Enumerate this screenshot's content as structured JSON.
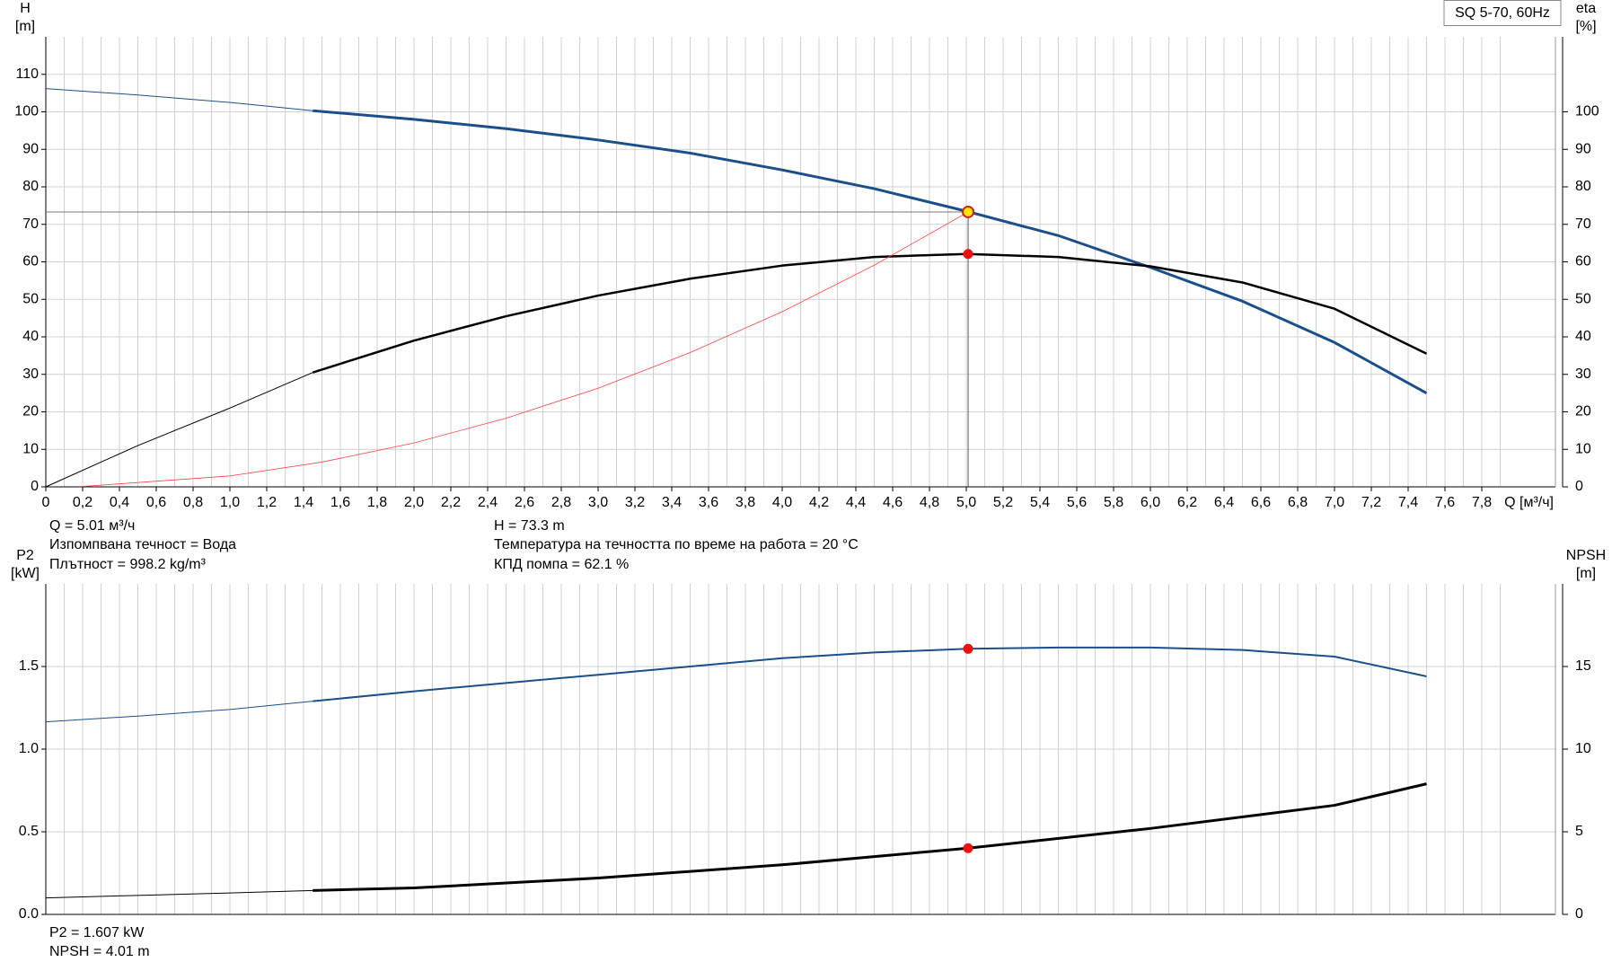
{
  "chart_data": [
    {
      "type": "line",
      "ylabel": "H",
      "yunit": "[m]",
      "y2label": "eta",
      "y2unit": "[%]",
      "legend_text": "SQ 5-70, 60Hz",
      "xlabel": "Q [м³/ч]",
      "xlim": [
        0,
        8.2
      ],
      "ylim": [
        0,
        120
      ],
      "y2lim": [
        0,
        120
      ],
      "xticks": [
        0,
        {
          "value": 0.2,
          "label": "0,2"
        },
        {
          "value": 0.4,
          "label": "0,4"
        },
        {
          "value": 0.6,
          "label": "0,6"
        },
        {
          "value": 0.8,
          "label": "0,8"
        },
        {
          "value": 1.0,
          "label": "1,0"
        },
        {
          "value": 1.2,
          "label": "1,2"
        },
        {
          "value": 1.4,
          "label": "1,4"
        },
        {
          "value": 1.6,
          "label": "1,6"
        },
        {
          "value": 1.8,
          "label": "1,8"
        },
        {
          "value": 2.0,
          "label": "2,0"
        },
        {
          "value": 2.2,
          "label": "2,2"
        },
        {
          "value": 2.4,
          "label": "2,4"
        },
        {
          "value": 2.6,
          "label": "2,6"
        },
        {
          "value": 2.8,
          "label": "2,8"
        },
        {
          "value": 3.0,
          "label": "3,0"
        },
        {
          "value": 3.2,
          "label": "3,2"
        },
        {
          "value": 3.4,
          "label": "3,4"
        },
        {
          "value": 3.6,
          "label": "3,6"
        },
        {
          "value": 3.8,
          "label": "3,8"
        },
        {
          "value": 4.0,
          "label": "4,0"
        },
        {
          "value": 4.2,
          "label": "4,2"
        },
        {
          "value": 4.4,
          "label": "4,4"
        },
        {
          "value": 4.6,
          "label": "4,6"
        },
        {
          "value": 4.8,
          "label": "4,8"
        },
        {
          "value": 5.0,
          "label": "5,0"
        },
        {
          "value": 5.2,
          "label": "5,2"
        },
        {
          "value": 5.4,
          "label": "5,4"
        },
        {
          "value": 5.6,
          "label": "5,6"
        },
        {
          "value": 5.8,
          "label": "5,8"
        },
        {
          "value": 6.0,
          "label": "6,0"
        },
        {
          "value": 6.2,
          "label": "6,2"
        },
        {
          "value": 6.4,
          "label": "6,4"
        },
        {
          "value": 6.6,
          "label": "6,6"
        },
        {
          "value": 6.8,
          "label": "6,8"
        },
        {
          "value": 7.0,
          "label": "7,0"
        },
        {
          "value": 7.2,
          "label": "7,2"
        },
        {
          "value": 7.4,
          "label": "7,4"
        },
        {
          "value": 7.6,
          "label": "7,6"
        },
        {
          "value": 7.8,
          "label": "7,8"
        }
      ],
      "yticks": [
        0,
        10,
        20,
        30,
        40,
        50,
        60,
        70,
        80,
        90,
        100,
        110
      ],
      "y2ticks": [
        0,
        10,
        20,
        30,
        40,
        50,
        60,
        70,
        80,
        90,
        100
      ],
      "grid": true,
      "xgrid_minor": true,
      "series": [
        {
          "color": "#1a4f8b",
          "width": 1,
          "x": [
            0,
            0.5,
            1.0,
            1.45
          ],
          "values": [
            106.2,
            104.5,
            102.5,
            100.3
          ]
        },
        {
          "color": "#1a4f8b",
          "width": 3,
          "x": [
            1.45,
            2.0,
            2.5,
            3.0,
            3.5,
            4.0,
            4.5,
            5.0,
            5.5,
            6.0,
            6.5,
            7.0,
            7.5
          ],
          "values": [
            100.3,
            98,
            95.5,
            92.5,
            89,
            84.5,
            79.5,
            73.5,
            67,
            58.5,
            49.5,
            38.5,
            25
          ]
        },
        {
          "color": "#000000",
          "width": 1,
          "axis": "y2",
          "x": [
            0,
            0.5,
            1.0,
            1.45
          ],
          "values": [
            0,
            11,
            21,
            30.5
          ]
        },
        {
          "color": "#000000",
          "width": 2.5,
          "axis": "y2",
          "x": [
            1.45,
            2.0,
            2.5,
            3.0,
            3.5,
            4.0,
            4.5,
            5.0,
            5.5,
            6.0,
            6.5,
            7.0,
            7.5
          ],
          "values": [
            30.5,
            39,
            45.5,
            51,
            55.5,
            59,
            61.3,
            62.1,
            61.3,
            58.8,
            54.5,
            47.5,
            35.5
          ]
        },
        {
          "color": "#ff4040",
          "width": 0.8,
          "x": [
            0.2,
            1.0,
            1.5,
            2.0,
            2.5,
            3.0,
            3.5,
            4.0,
            4.5,
            5.01
          ],
          "values": [
            0.1,
            2.9,
            6.6,
            11.7,
            18.3,
            26.3,
            35.8,
            46.7,
            59.1,
            73.3
          ]
        }
      ],
      "markers": [
        {
          "x": 5.01,
          "y": 73.3,
          "color": "#ffe600",
          "guides": true
        },
        {
          "x": 5.01,
          "y": 62.1,
          "color": "#ee1111",
          "axis": "y2"
        }
      ],
      "notes": [
        "Q = 5.01 м³/ч",
        "Изпомпвана течност = Вода",
        "Плътност = 998.2 kg/m³",
        "H = 73.3 m",
        "Температура на течността по време на работа = 20 °C",
        "КПД помпа = 62.1 %"
      ]
    },
    {
      "type": "line",
      "ylabel": "P2",
      "yunit": "[kW]",
      "y2label": "NPSH",
      "y2unit": "[m]",
      "xlim": [
        0,
        8.2
      ],
      "ylim": [
        0,
        2
      ],
      "y2lim": [
        0,
        20
      ],
      "yticks": [
        {
          "value": 0,
          "label": "0.0"
        },
        0.5,
        {
          "value": 1,
          "label": "1.0"
        },
        1.5
      ],
      "y2ticks": [
        0,
        5,
        10,
        15
      ],
      "grid": true,
      "xgrid_minor": true,
      "series": [
        {
          "color": "#1a4f8b",
          "width": 1,
          "x": [
            0,
            0.5,
            1.0,
            1.45
          ],
          "values": [
            1.165,
            1.2,
            1.24,
            1.29
          ]
        },
        {
          "color": "#1a4f8b",
          "width": 2,
          "x": [
            1.45,
            2.0,
            2.5,
            3.0,
            3.5,
            4.0,
            4.5,
            5.01,
            5.5,
            6.0,
            6.5,
            7.0,
            7.5
          ],
          "values": [
            1.29,
            1.35,
            1.4,
            1.45,
            1.5,
            1.55,
            1.585,
            1.607,
            1.615,
            1.615,
            1.6,
            1.56,
            1.44
          ]
        },
        {
          "color": "#000000",
          "width": 1,
          "axis": "y2",
          "x": [
            0,
            0.5,
            1.0,
            1.45
          ],
          "values": [
            1.0,
            1.15,
            1.3,
            1.45
          ]
        },
        {
          "color": "#000000",
          "width": 3,
          "axis": "y2",
          "x": [
            1.45,
            2.0,
            3.0,
            4.0,
            5.01,
            6.0,
            7.0,
            7.5
          ],
          "values": [
            1.45,
            1.6,
            2.2,
            3.0,
            4.01,
            5.2,
            6.6,
            7.9
          ]
        }
      ],
      "markers": [
        {
          "x": 5.01,
          "y": 1.607,
          "color": "#ee1111"
        },
        {
          "x": 5.01,
          "y": 4.01,
          "color": "#ee1111",
          "axis": "y2"
        }
      ],
      "notes": [
        "P2 = 1.607 kW",
        "NPSH = 4.01 m"
      ]
    }
  ]
}
